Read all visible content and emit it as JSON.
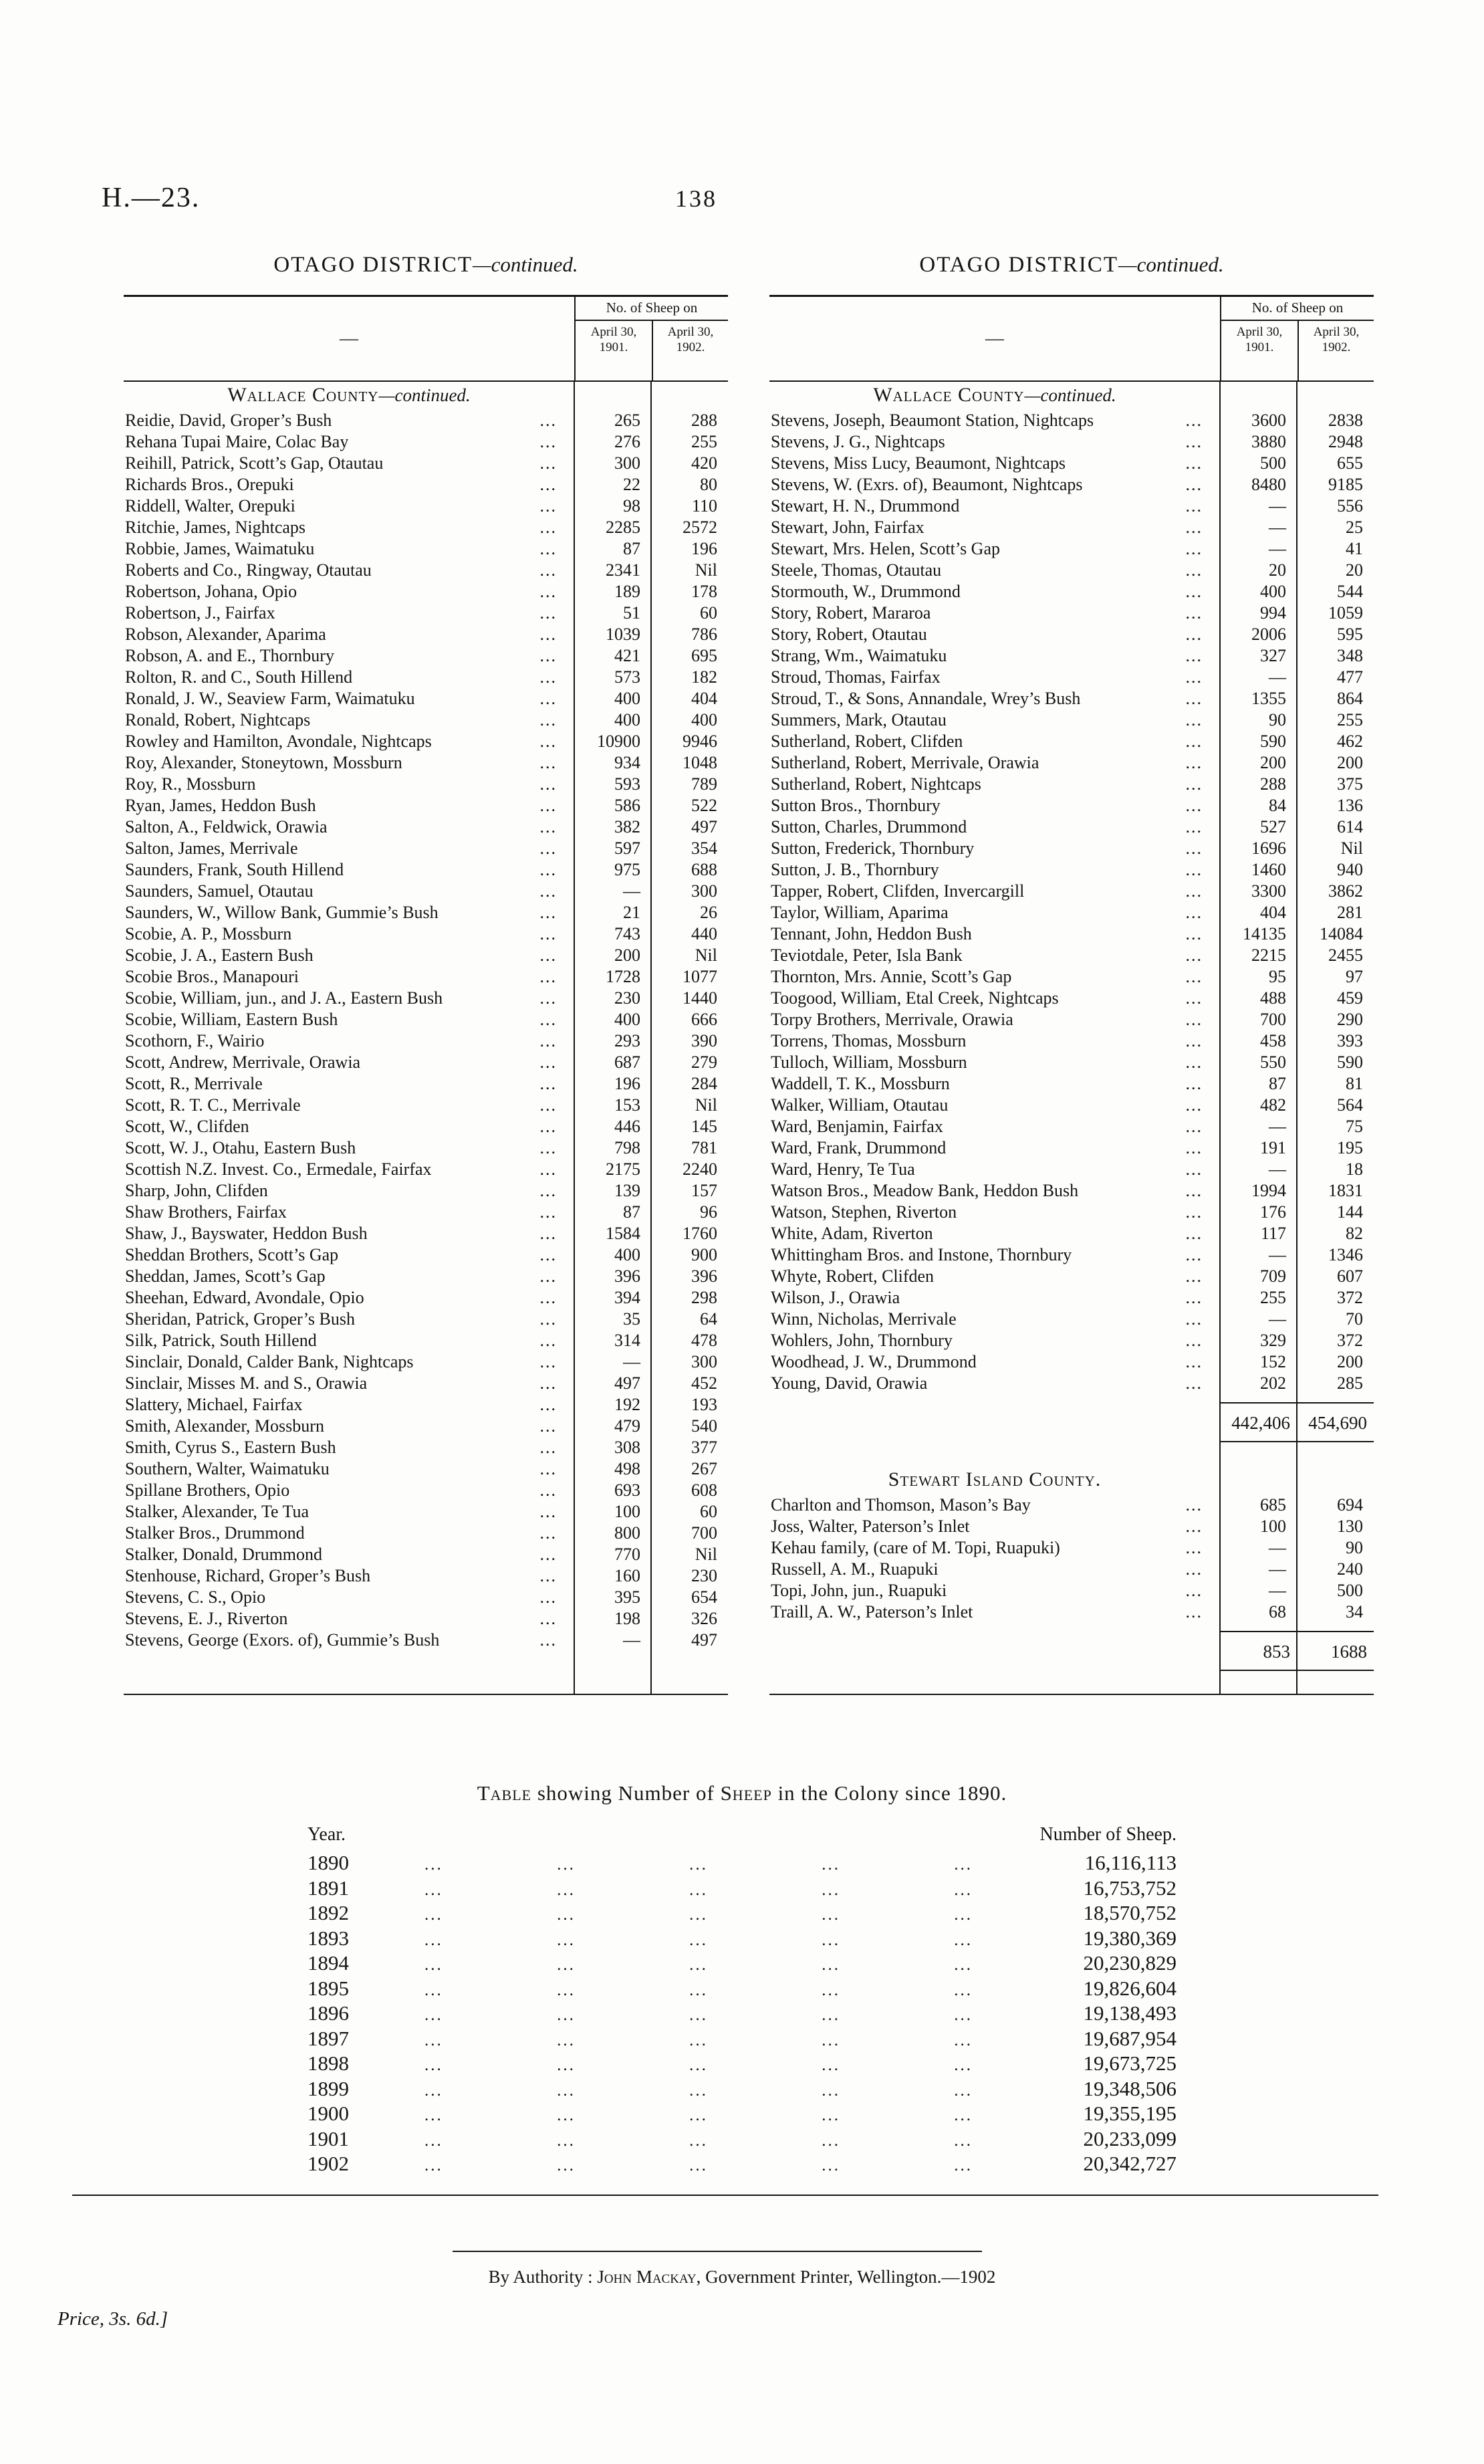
{
  "page": {
    "report_code": "H.—23.",
    "page_number": "138",
    "price_note": "Price, 3s. 6d.]",
    "imprint": {
      "prefix": "By Authority : ",
      "printer_name": "John Mackay",
      "suffix": ", Government Printer, Wellington.—1902"
    }
  },
  "columns": [
    {
      "district_heading": {
        "main": "OTAGO DISTRICT",
        "cont": "—continued."
      },
      "table_header": {
        "dash": "—",
        "span_label": "No. of Sheep on",
        "col1": "April 30, 1901.",
        "col2": "April 30, 1902."
      },
      "sections": [
        {
          "heading": {
            "main": "Wallace County",
            "cont": "—continued."
          },
          "rows": [
            [
              "Reidie, David, Groper’s Bush",
              "265",
              "288"
            ],
            [
              "Rehana Tupai Maire, Colac Bay",
              "276",
              "255"
            ],
            [
              "Reihill, Patrick, Scott’s Gap, Otautau",
              "300",
              "420"
            ],
            [
              "Richards Bros., Orepuki",
              "22",
              "80"
            ],
            [
              "Riddell, Walter, Orepuki",
              "98",
              "110"
            ],
            [
              "Ritchie, James, Nightcaps",
              "2285",
              "2572"
            ],
            [
              "Robbie, James, Waimatuku",
              "87",
              "196"
            ],
            [
              "Roberts and Co., Ringway, Otautau",
              "2341",
              "Nil"
            ],
            [
              "Robertson, Johana, Opio",
              "189",
              "178"
            ],
            [
              "Robertson, J., Fairfax",
              "51",
              "60"
            ],
            [
              "Robson, Alexander, Aparima",
              "1039",
              "786"
            ],
            [
              "Robson, A. and E., Thornbury",
              "421",
              "695"
            ],
            [
              "Rolton, R. and C., South Hillend",
              "573",
              "182"
            ],
            [
              "Ronald, J. W., Seaview Farm, Waimatuku",
              "400",
              "404"
            ],
            [
              "Ronald, Robert, Nightcaps",
              "400",
              "400"
            ],
            [
              "Rowley and Hamilton, Avondale, Nightcaps",
              "10900",
              "9946"
            ],
            [
              "Roy, Alexander, Stoneytown, Mossburn",
              "934",
              "1048"
            ],
            [
              "Roy, R., Mossburn",
              "593",
              "789"
            ],
            [
              "Ryan, James, Heddon Bush",
              "586",
              "522"
            ],
            [
              "Salton, A., Feldwick, Orawia",
              "382",
              "497"
            ],
            [
              "Salton, James, Merrivale",
              "597",
              "354"
            ],
            [
              "Saunders, Frank, South Hillend",
              "975",
              "688"
            ],
            [
              "Saunders, Samuel, Otautau",
              "—",
              "300"
            ],
            [
              "Saunders, W., Willow Bank, Gummie’s Bush",
              "21",
              "26"
            ],
            [
              "Scobie, A. P., Mossburn",
              "743",
              "440"
            ],
            [
              "Scobie, J. A., Eastern Bush",
              "200",
              "Nil"
            ],
            [
              "Scobie Bros., Manapouri",
              "1728",
              "1077"
            ],
            [
              "Scobie, William, jun., and J. A., Eastern Bush",
              "230",
              "1440"
            ],
            [
              "Scobie, William, Eastern Bush",
              "400",
              "666"
            ],
            [
              "Scothorn, F., Wairio",
              "293",
              "390"
            ],
            [
              "Scott, Andrew, Merrivale, Orawia",
              "687",
              "279"
            ],
            [
              "Scott, R., Merrivale",
              "196",
              "284"
            ],
            [
              "Scott, R. T. C., Merrivale",
              "153",
              "Nil"
            ],
            [
              "Scott, W., Clifden",
              "446",
              "145"
            ],
            [
              "Scott, W. J., Otahu, Eastern Bush",
              "798",
              "781"
            ],
            [
              "Scottish N.Z. Invest. Co., Ermedale, Fairfax",
              "2175",
              "2240"
            ],
            [
              "Sharp, John, Clifden",
              "139",
              "157"
            ],
            [
              "Shaw Brothers, Fairfax",
              "87",
              "96"
            ],
            [
              "Shaw, J., Bayswater, Heddon Bush",
              "1584",
              "1760"
            ],
            [
              "Sheddan Brothers, Scott’s Gap",
              "400",
              "900"
            ],
            [
              "Sheddan, James, Scott’s Gap",
              "396",
              "396"
            ],
            [
              "Sheehan, Edward, Avondale, Opio",
              "394",
              "298"
            ],
            [
              "Sheridan, Patrick, Groper’s Bush",
              "35",
              "64"
            ],
            [
              "Silk, Patrick, South Hillend",
              "314",
              "478"
            ],
            [
              "Sinclair, Donald, Calder Bank, Nightcaps",
              "—",
              "300"
            ],
            [
              "Sinclair, Misses M. and S., Orawia",
              "497",
              "452"
            ],
            [
              "Slattery, Michael, Fairfax",
              "192",
              "193"
            ],
            [
              "Smith, Alexander, Mossburn",
              "479",
              "540"
            ],
            [
              "Smith, Cyrus S., Eastern Bush",
              "308",
              "377"
            ],
            [
              "Southern, Walter, Waimatuku",
              "498",
              "267"
            ],
            [
              "Spillane Brothers, Opio",
              "693",
              "608"
            ],
            [
              "Stalker, Alexander, Te Tua",
              "100",
              "60"
            ],
            [
              "Stalker Bros., Drummond",
              "800",
              "700"
            ],
            [
              "Stalker, Donald, Drummond",
              "770",
              "Nil"
            ],
            [
              "Stenhouse, Richard, Groper’s Bush",
              "160",
              "230"
            ],
            [
              "Stevens, C. S., Opio",
              "395",
              "654"
            ],
            [
              "Stevens, E. J., Riverton",
              "198",
              "326"
            ],
            [
              "Stevens, George (Exors. of), Gummie’s Bush",
              "—",
              "497"
            ]
          ],
          "totals": null
        }
      ]
    },
    {
      "district_heading": {
        "main": "OTAGO DISTRICT",
        "cont": "—continued."
      },
      "table_header": {
        "dash": "—",
        "span_label": "No. of Sheep on",
        "col1": "April 30, 1901.",
        "col2": "April 30, 1902."
      },
      "sections": [
        {
          "heading": {
            "main": "Wallace County",
            "cont": "—continued."
          },
          "rows": [
            [
              "Stevens, Joseph, Beaumont Station, Nightcaps",
              "3600",
              "2838"
            ],
            [
              "Stevens, J. G., Nightcaps",
              "3880",
              "2948"
            ],
            [
              "Stevens, Miss Lucy, Beaumont, Nightcaps",
              "500",
              "655"
            ],
            [
              "Stevens, W. (Exrs. of), Beaumont, Nightcaps",
              "8480",
              "9185"
            ],
            [
              "Stewart, H. N., Drummond",
              "—",
              "556"
            ],
            [
              "Stewart, John, Fairfax",
              "—",
              "25"
            ],
            [
              "Stewart, Mrs. Helen, Scott’s Gap",
              "—",
              "41"
            ],
            [
              "Steele, Thomas, Otautau",
              "20",
              "20"
            ],
            [
              "Stormouth, W., Drummond",
              "400",
              "544"
            ],
            [
              "Story, Robert, Mararoa",
              "994",
              "1059"
            ],
            [
              "Story, Robert, Otautau",
              "2006",
              "595"
            ],
            [
              "Strang, Wm., Waimatuku",
              "327",
              "348"
            ],
            [
              "Stroud, Thomas, Fairfax",
              "—",
              "477"
            ],
            [
              "Stroud, T., & Sons, Annandale, Wrey’s Bush",
              "1355",
              "864"
            ],
            [
              "Summers, Mark, Otautau",
              "90",
              "255"
            ],
            [
              "Sutherland, Robert, Clifden",
              "590",
              "462"
            ],
            [
              "Sutherland, Robert, Merrivale, Orawia",
              "200",
              "200"
            ],
            [
              "Sutherland, Robert, Nightcaps",
              "288",
              "375"
            ],
            [
              "Sutton Bros., Thornbury",
              "84",
              "136"
            ],
            [
              "Sutton, Charles, Drummond",
              "527",
              "614"
            ],
            [
              "Sutton, Frederick, Thornbury",
              "1696",
              "Nil"
            ],
            [
              "Sutton, J. B., Thornbury",
              "1460",
              "940"
            ],
            [
              "Tapper, Robert, Clifden, Invercargill",
              "3300",
              "3862"
            ],
            [
              "Taylor, William, Aparima",
              "404",
              "281"
            ],
            [
              "Tennant, John, Heddon Bush",
              "14135",
              "14084"
            ],
            [
              "Teviotdale, Peter, Isla Bank",
              "2215",
              "2455"
            ],
            [
              "Thornton, Mrs. Annie, Scott’s Gap",
              "95",
              "97"
            ],
            [
              "Toogood, William, Etal Creek, Nightcaps",
              "488",
              "459"
            ],
            [
              "Torpy Brothers, Merrivale, Orawia",
              "700",
              "290"
            ],
            [
              "Torrens, Thomas, Mossburn",
              "458",
              "393"
            ],
            [
              "Tulloch, William, Mossburn",
              "550",
              "590"
            ],
            [
              "Waddell, T. K., Mossburn",
              "87",
              "81"
            ],
            [
              "Walker, William, Otautau",
              "482",
              "564"
            ],
            [
              "Ward, Benjamin, Fairfax",
              "—",
              "75"
            ],
            [
              "Ward, Frank, Drummond",
              "191",
              "195"
            ],
            [
              "Ward, Henry, Te Tua",
              "—",
              "18"
            ],
            [
              "Watson Bros., Meadow Bank, Heddon Bush",
              "1994",
              "1831"
            ],
            [
              "Watson, Stephen, Riverton",
              "176",
              "144"
            ],
            [
              "White, Adam, Riverton",
              "117",
              "82"
            ],
            [
              "Whittingham Bros. and Instone, Thornbury",
              "—",
              "1346"
            ],
            [
              "Whyte, Robert, Clifden",
              "709",
              "607"
            ],
            [
              "Wilson, J., Orawia",
              "255",
              "372"
            ],
            [
              "Winn, Nicholas, Merrivale",
              "—",
              "70"
            ],
            [
              "Wohlers, John, Thornbury",
              "329",
              "372"
            ],
            [
              "Woodhead, J. W., Drummond",
              "152",
              "200"
            ],
            [
              "Young, David, Orawia",
              "202",
              "285"
            ]
          ],
          "totals": [
            "442,406",
            "454,690"
          ]
        },
        {
          "heading": {
            "main": "Stewart Island County.",
            "cont": ""
          },
          "rows": [
            [
              "Charlton and Thomson, Mason’s Bay",
              "685",
              "694"
            ],
            [
              "Joss, Walter, Paterson’s Inlet",
              "100",
              "130"
            ],
            [
              "Kehau family, (care of M. Topi, Ruapuki)",
              "—",
              "90"
            ],
            [
              "Russell, A. M., Ruapuki",
              "—",
              "240"
            ],
            [
              "Topi, John, jun., Ruapuki",
              "—",
              "500"
            ],
            [
              "Traill, A. W., Paterson’s Inlet",
              "68",
              "34"
            ]
          ],
          "totals": [
            "853",
            "1688"
          ]
        }
      ]
    }
  ],
  "colony_table": {
    "title_sc1": "Table",
    "title_mid": " showing Number of ",
    "title_sc2": "Sheep",
    "title_rest": " in the Colony since 1890.",
    "year_header": "Year.",
    "count_header": "Number of Sheep.",
    "years": [
      "1890",
      "1891",
      "1892",
      "1893",
      "1894",
      "1895",
      "1896",
      "1897",
      "1898",
      "1899",
      "1900",
      "1901",
      "1902"
    ],
    "values": [
      "16,116,113",
      "16,753,752",
      "18,570,752",
      "19,380,369",
      "20,230,829",
      "19,826,604",
      "19,138,493",
      "19,687,954",
      "19,673,725",
      "19,348,506",
      "19,355,195",
      "20,233,099",
      "20,342,727"
    ]
  }
}
